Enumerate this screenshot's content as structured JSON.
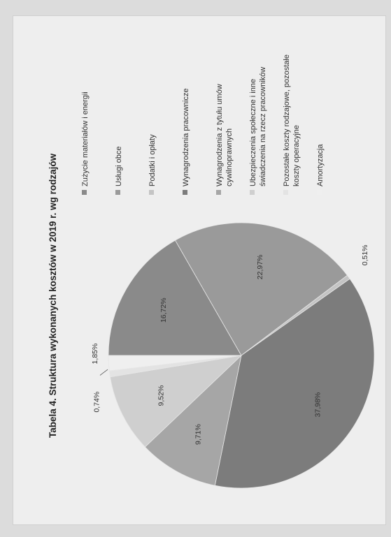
{
  "chart_data": {
    "type": "pie",
    "title": "Tabela 4. Struktura wykonanych kosztów w 2019 r. wg rodzajów",
    "categories": [
      "Zużycie materiałów i energii",
      "Usługi obce",
      "Podatki i opłaty",
      "Wynagrodzenia pracownicze",
      "Wynagrodzenia z tytułu umów cywilnoprawnych",
      "Ubezpieczenia społeczne i inne świadczenia na rzecz pracowników",
      "Pozostałe koszty rodzajowe, pozostałe koszty operacyjne",
      "Amortyzacja"
    ],
    "values": [
      16.72,
      22.97,
      0.51,
      37.98,
      9.71,
      9.52,
      0.74,
      1.85
    ],
    "data_labels": [
      "16,72%",
      "22,97%",
      "0,51%",
      "37,98%",
      "9,71%",
      "9,52%",
      "0,74%",
      "1,85%"
    ],
    "legend_lines": [
      [
        "Zużycie materiałów i energii"
      ],
      [
        "Usługi obce"
      ],
      [
        "Podatki i opłaty"
      ],
      [
        "Wynagrodzenia pracownicze"
      ],
      [
        "Wynagrodzenia z tytułu umów",
        "cywilnoprawnych"
      ],
      [
        "Ubezpieczenia społeczne i inne",
        "świadczenia na rzecz pracowników"
      ],
      [
        "Pozostałe koszty rodzajowe, pozostałe",
        "koszty operacyjne"
      ],
      [
        "Amortyzacja"
      ]
    ],
    "colors": [
      "#8a8a8a",
      "#9a9a9a",
      "#c4c4c4",
      "#7c7c7c",
      "#a6a6a6",
      "#cfcfcf",
      "#e3e3e3",
      "#efefef"
    ],
    "legend_position": "right",
    "orientation": "rotated-90-ccw"
  }
}
